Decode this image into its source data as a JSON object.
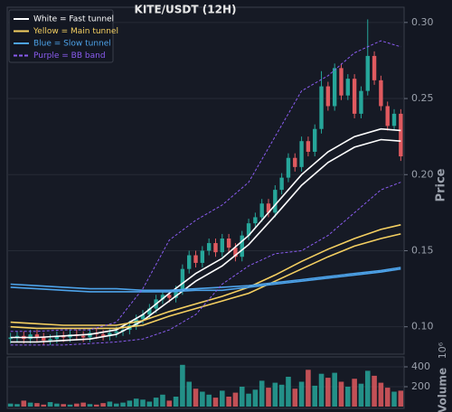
{
  "chart_data": {
    "type": "candlestick",
    "title": "KITE/USDT (12H)",
    "y_label": "Price",
    "volume_label": "Volume",
    "volume_offset_label": "10⁶",
    "xlim": [
      -0.5,
      59.5
    ],
    "ylim": [
      0.082,
      0.31
    ],
    "yticks": [
      {
        "value": 0.1,
        "label": "0.10"
      },
      {
        "value": 0.15,
        "label": "0.15"
      },
      {
        "value": 0.2,
        "label": "0.20"
      },
      {
        "value": 0.25,
        "label": "0.25"
      },
      {
        "value": 0.3,
        "label": "0.30"
      }
    ],
    "volume_ylim": [
      0,
      500
    ],
    "volume_yticks": [
      200,
      400
    ],
    "grid": true,
    "up_color": "#26a69a",
    "down_color": "#e05a5f",
    "open": [
      0.092,
      0.093,
      0.094,
      0.092,
      0.095,
      0.093,
      0.091,
      0.092,
      0.094,
      0.093,
      0.095,
      0.094,
      0.093,
      0.096,
      0.095,
      0.094,
      0.096,
      0.097,
      0.098,
      0.101,
      0.105,
      0.108,
      0.112,
      0.118,
      0.121,
      0.119,
      0.124,
      0.138,
      0.147,
      0.142,
      0.15,
      0.155,
      0.149,
      0.158,
      0.152,
      0.146,
      0.16,
      0.168,
      0.172,
      0.181,
      0.175,
      0.19,
      0.198,
      0.211,
      0.205,
      0.222,
      0.215,
      0.23,
      0.258,
      0.245,
      0.27,
      0.252,
      0.263,
      0.24,
      0.255,
      0.278,
      0.262,
      0.245,
      0.232,
      0.24
    ],
    "high": [
      0.096,
      0.097,
      0.097,
      0.098,
      0.098,
      0.096,
      0.095,
      0.097,
      0.097,
      0.098,
      0.098,
      0.097,
      0.099,
      0.099,
      0.098,
      0.099,
      0.1,
      0.101,
      0.104,
      0.108,
      0.111,
      0.115,
      0.121,
      0.124,
      0.124,
      0.127,
      0.141,
      0.15,
      0.15,
      0.153,
      0.158,
      0.158,
      0.161,
      0.161,
      0.155,
      0.163,
      0.171,
      0.175,
      0.184,
      0.184,
      0.193,
      0.201,
      0.214,
      0.214,
      0.225,
      0.225,
      0.233,
      0.268,
      0.261,
      0.273,
      0.273,
      0.266,
      0.266,
      0.258,
      0.302,
      0.281,
      0.265,
      0.248,
      0.243,
      0.243
    ],
    "low": [
      0.089,
      0.09,
      0.089,
      0.089,
      0.09,
      0.088,
      0.088,
      0.089,
      0.09,
      0.09,
      0.091,
      0.09,
      0.09,
      0.092,
      0.091,
      0.091,
      0.093,
      0.094,
      0.095,
      0.098,
      0.102,
      0.105,
      0.109,
      0.115,
      0.116,
      0.116,
      0.121,
      0.135,
      0.139,
      0.139,
      0.147,
      0.146,
      0.146,
      0.149,
      0.143,
      0.143,
      0.157,
      0.165,
      0.169,
      0.172,
      0.172,
      0.187,
      0.195,
      0.202,
      0.202,
      0.212,
      0.212,
      0.227,
      0.242,
      0.242,
      0.249,
      0.249,
      0.237,
      0.237,
      0.252,
      0.259,
      0.242,
      0.229,
      0.229,
      0.209
    ],
    "close": [
      0.093,
      0.094,
      0.092,
      0.095,
      0.093,
      0.091,
      0.092,
      0.094,
      0.093,
      0.095,
      0.094,
      0.093,
      0.096,
      0.095,
      0.094,
      0.096,
      0.097,
      0.098,
      0.101,
      0.105,
      0.108,
      0.112,
      0.118,
      0.121,
      0.119,
      0.124,
      0.138,
      0.147,
      0.142,
      0.15,
      0.155,
      0.149,
      0.158,
      0.152,
      0.146,
      0.16,
      0.168,
      0.172,
      0.181,
      0.175,
      0.19,
      0.198,
      0.211,
      0.205,
      0.222,
      0.215,
      0.23,
      0.258,
      0.245,
      0.27,
      0.252,
      0.263,
      0.24,
      0.255,
      0.278,
      0.262,
      0.245,
      0.232,
      0.24,
      0.212
    ],
    "volume": [
      30,
      25,
      60,
      40,
      35,
      20,
      45,
      30,
      25,
      20,
      30,
      40,
      25,
      20,
      35,
      50,
      30,
      40,
      60,
      80,
      70,
      50,
      90,
      120,
      60,
      100,
      420,
      250,
      180,
      150,
      120,
      90,
      160,
      100,
      140,
      200,
      130,
      170,
      260,
      190,
      240,
      220,
      300,
      180,
      250,
      370,
      210,
      330,
      290,
      340,
      250,
      200,
      280,
      230,
      360,
      310,
      240,
      190,
      150,
      160
    ],
    "band_x": [
      0,
      4,
      8,
      12,
      16,
      20,
      24,
      28,
      32,
      36,
      40,
      44,
      48,
      52,
      56,
      59
    ],
    "bands": [
      {
        "name": "White = Fast tunnel",
        "color": "#ffffff",
        "dashed": false,
        "upper": [
          0.093,
          0.093,
          0.094,
          0.095,
          0.098,
          0.108,
          0.122,
          0.135,
          0.145,
          0.16,
          0.18,
          0.2,
          0.215,
          0.225,
          0.23,
          0.229
        ],
        "lower": [
          0.09,
          0.09,
          0.091,
          0.092,
          0.095,
          0.104,
          0.117,
          0.13,
          0.14,
          0.154,
          0.173,
          0.193,
          0.208,
          0.218,
          0.223,
          0.222
        ]
      },
      {
        "name": "Yellow = Main tunnel",
        "color": "#f5d061",
        "dashed": false,
        "upper": [
          0.103,
          0.102,
          0.101,
          0.101,
          0.101,
          0.104,
          0.11,
          0.115,
          0.12,
          0.126,
          0.134,
          0.143,
          0.151,
          0.158,
          0.164,
          0.167
        ],
        "lower": [
          0.1,
          0.099,
          0.099,
          0.099,
          0.099,
          0.101,
          0.107,
          0.112,
          0.117,
          0.122,
          0.13,
          0.138,
          0.146,
          0.153,
          0.158,
          0.161
        ]
      },
      {
        "name": "Blue = Slow tunnel",
        "color": "#4da3ea",
        "dashed": false,
        "upper": [
          0.128,
          0.127,
          0.126,
          0.125,
          0.125,
          0.124,
          0.124,
          0.125,
          0.126,
          0.127,
          0.129,
          0.131,
          0.133,
          0.135,
          0.137,
          0.139
        ],
        "lower": [
          0.126,
          0.125,
          0.124,
          0.123,
          0.123,
          0.123,
          0.123,
          0.124,
          0.124,
          0.126,
          0.128,
          0.13,
          0.132,
          0.134,
          0.136,
          0.138
        ]
      },
      {
        "name": "Purple = BB band",
        "color": "#8a5cf0",
        "dashed": true,
        "upper": [
          0.097,
          0.097,
          0.098,
          0.098,
          0.103,
          0.125,
          0.157,
          0.17,
          0.18,
          0.195,
          0.225,
          0.255,
          0.265,
          0.28,
          0.288,
          0.284
        ],
        "lower": [
          0.088,
          0.088,
          0.088,
          0.089,
          0.09,
          0.092,
          0.098,
          0.108,
          0.128,
          0.14,
          0.148,
          0.15,
          0.16,
          0.175,
          0.19,
          0.195
        ]
      }
    ]
  }
}
